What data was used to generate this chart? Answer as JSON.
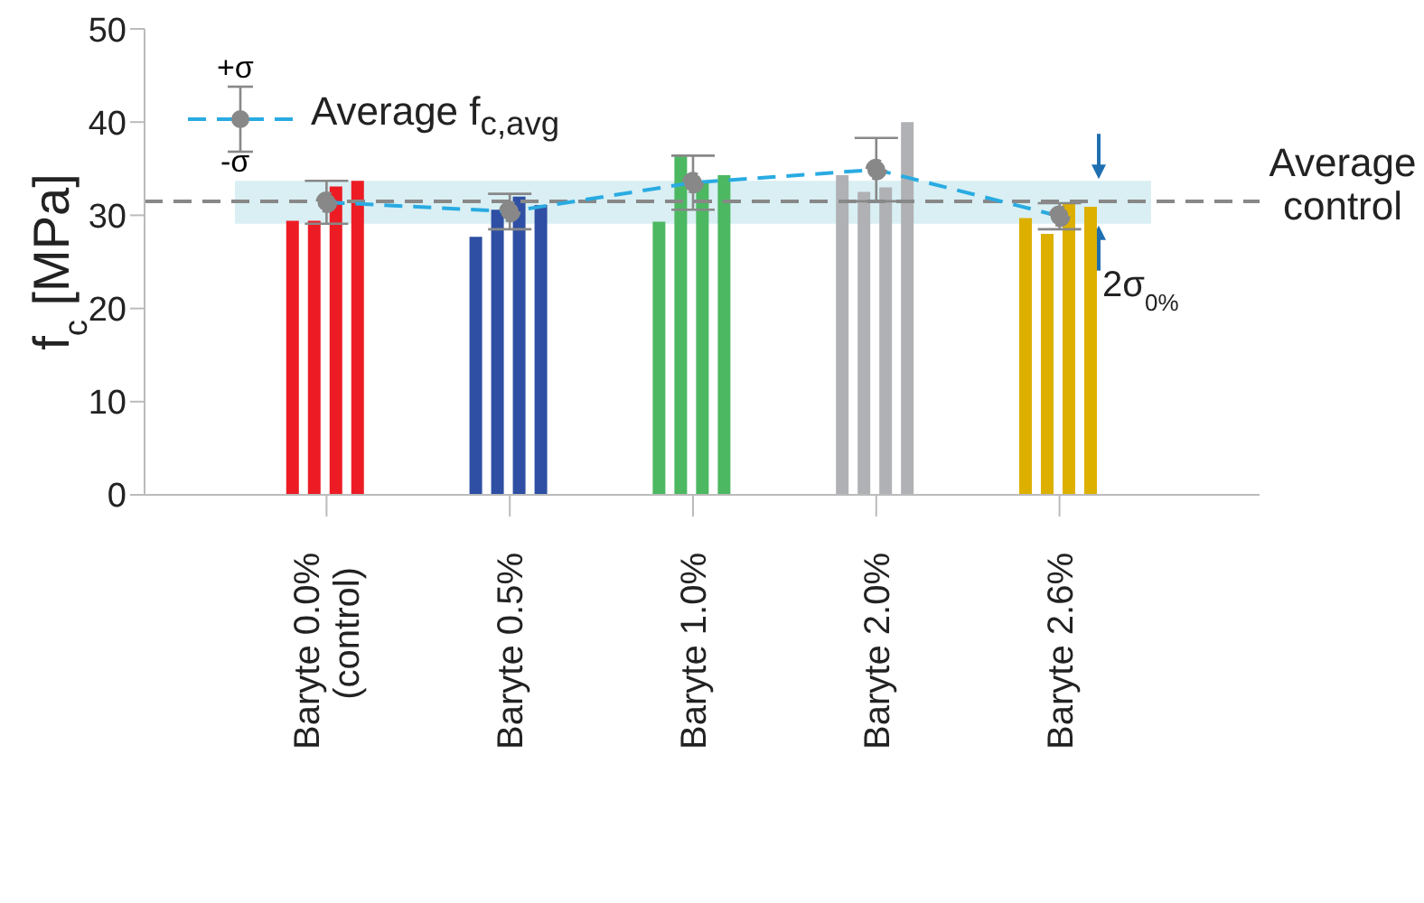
{
  "chart_data": {
    "type": "bar",
    "ylabel": "f$_{c}$ [MPa]",
    "categories": [
      "Baryte 0.0%\n(control)",
      "Baryte 0.5%",
      "Baryte 1.0%",
      "Baryte 2.0%",
      "Baryte 2.6%"
    ],
    "series": [
      {
        "colors": [
          "#ed1c24",
          "#2e4fa3",
          "#4cb862",
          "#b0b1b5",
          "#ddb000"
        ],
        "values": [
          29.4,
          27.7,
          29.3,
          34.3,
          29.7
        ]
      },
      {
        "colors": [
          "#ed1c24",
          "#2e4fa3",
          "#4cb862",
          "#b0b1b5",
          "#ddb000"
        ],
        "values": [
          29.4,
          30.6,
          36.4,
          32.5,
          28.0
        ]
      },
      {
        "colors": [
          "#ed1c24",
          "#2e4fa3",
          "#4cb862",
          "#b0b1b5",
          "#ddb000"
        ],
        "values": [
          33.1,
          32.0,
          33.5,
          33.0,
          31.3
        ]
      },
      {
        "colors": [
          "#ed1c24",
          "#2e4fa3",
          "#4cb862",
          "#b0b1b5",
          "#ddb000"
        ],
        "values": [
          33.7,
          31.1,
          34.3,
          40.0,
          30.9
        ]
      },
      {
        "type": "line",
        "name": "Average f$_{c,avg}$",
        "color": "#29abe2",
        "values": [
          31.4,
          30.4,
          33.5,
          34.9,
          29.9
        ],
        "errors": [
          2.3,
          1.9,
          2.9,
          3.4,
          1.4
        ]
      }
    ],
    "marker": "circle",
    "line_style": "dashed",
    "ylim": [
      0,
      50
    ],
    "yticks": [
      0,
      10,
      20,
      30,
      40,
      50
    ],
    "grid": false,
    "legend": "top left",
    "ref_lines": [
      {
        "axis": "y",
        "value": 31.5,
        "label": "Average\ncontrol",
        "color": "#888888",
        "line_style": "dashed"
      }
    ],
    "bands": [
      {
        "axis": "y",
        "from": 29.1,
        "to": 33.7,
        "label": "2σ$_{0%}$",
        "color": "#d9eff3"
      }
    ],
    "annotations": [
      "+σ",
      "-σ"
    ]
  }
}
